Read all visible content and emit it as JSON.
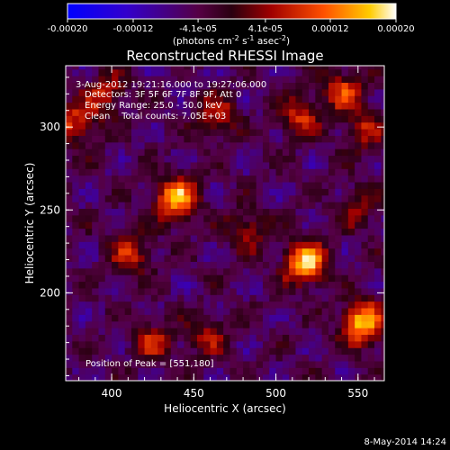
{
  "chart_data": {
    "type": "heatmap",
    "title": "Reconstructed RHESSI Image",
    "xlabel": "Heliocentric X (arcsec)",
    "ylabel": "Heliocentric Y (arcsec)",
    "xlim": [
      372,
      566
    ],
    "ylim": [
      147,
      337
    ],
    "xticks": [
      400,
      450,
      500,
      550
    ],
    "yticks": [
      200,
      250,
      300
    ],
    "colorbar": {
      "range": [
        -0.0002,
        0.0002
      ],
      "tick_labels": [
        "-0.00020",
        "-0.00012",
        "-4.1e-05",
        "4.1e-05",
        "0.00012",
        "0.00020"
      ],
      "tick_values": [
        -0.0002,
        -0.00012,
        -4.1e-05,
        4.1e-05,
        0.00012,
        0.0002
      ],
      "units_prefix": "(photons cm",
      "units_exp1": "-2",
      "units_mid1": " s",
      "units_exp2": "-1",
      "units_mid2": " asec",
      "units_exp3": "-2",
      "units_suffix": ")"
    },
    "annotations": [
      "3-Aug-2012 19:21:16.000 to 19:27:06.000",
      "Detectors: 3F 5F 6F 7F 8F 9F, Att 0",
      "Energy Range: 25.0 - 50.0 keV",
      "Clean    Total counts: 7.05E+03"
    ],
    "peak_label": "Position of Peak = [551,180]",
    "peak": [
      551,
      180
    ],
    "sources": [
      {
        "x": 437,
        "y": 255,
        "intensity": 0.00019
      },
      {
        "x": 516,
        "y": 216,
        "intensity": 0.0002
      },
      {
        "x": 551,
        "y": 180,
        "intensity": 0.0002
      },
      {
        "x": 513,
        "y": 304,
        "intensity": 0.00011
      },
      {
        "x": 462,
        "y": 305,
        "intensity": 0.0001
      },
      {
        "x": 395,
        "y": 318,
        "intensity": 0.0001
      },
      {
        "x": 376,
        "y": 300,
        "intensity": 0.00012
      },
      {
        "x": 410,
        "y": 222,
        "intensity": 0.0001
      },
      {
        "x": 423,
        "y": 168,
        "intensity": 9e-05
      },
      {
        "x": 481,
        "y": 236,
        "intensity": 9e-05
      },
      {
        "x": 456,
        "y": 172,
        "intensity": 8e-05
      },
      {
        "x": 552,
        "y": 296,
        "intensity": 9e-05
      },
      {
        "x": 548,
        "y": 250,
        "intensity": 8e-05
      },
      {
        "x": 540,
        "y": 320,
        "intensity": 0.00012
      }
    ]
  },
  "footer_date": "8-May-2014 14:24"
}
